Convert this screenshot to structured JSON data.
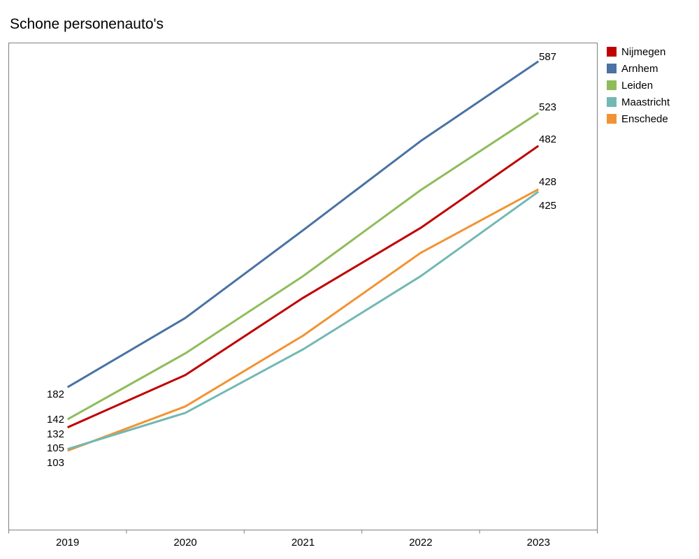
{
  "chart_data": {
    "type": "line",
    "title": "Schone personenauto's",
    "xlabel": "",
    "ylabel": "",
    "categories": [
      "2019",
      "2020",
      "2021",
      "2022",
      "2023"
    ],
    "ylim": [
      0,
      620
    ],
    "grid": false,
    "legend": "right",
    "series": [
      {
        "name": "Nijmegen",
        "color": "#c00000",
        "values": [
          132,
          197,
          293,
          380,
          482
        ]
      },
      {
        "name": "Arnhem",
        "color": "#4a72a4",
        "values": [
          182,
          268,
          377,
          488,
          587
        ]
      },
      {
        "name": "Leiden",
        "color": "#8fbc5a",
        "values": [
          142,
          224,
          320,
          427,
          523
        ]
      },
      {
        "name": "Maastricht",
        "color": "#72b8b4",
        "values": [
          105,
          150,
          229,
          320,
          425
        ]
      },
      {
        "name": "Enschede",
        "color": "#f29333",
        "values": [
          103,
          158,
          246,
          349,
          428
        ]
      }
    ],
    "data_labels": [
      {
        "series": 1,
        "index": 0,
        "text": "182"
      },
      {
        "series": 2,
        "index": 0,
        "text": "142"
      },
      {
        "series": 0,
        "index": 0,
        "text": "132"
      },
      {
        "series": 3,
        "index": 0,
        "text": "105"
      },
      {
        "series": 4,
        "index": 0,
        "text": "103"
      },
      {
        "series": 1,
        "index": 4,
        "text": "587"
      },
      {
        "series": 2,
        "index": 4,
        "text": "523"
      },
      {
        "series": 0,
        "index": 4,
        "text": "482"
      },
      {
        "series": 4,
        "index": 4,
        "text": "428"
      },
      {
        "series": 3,
        "index": 4,
        "text": "425"
      }
    ]
  }
}
